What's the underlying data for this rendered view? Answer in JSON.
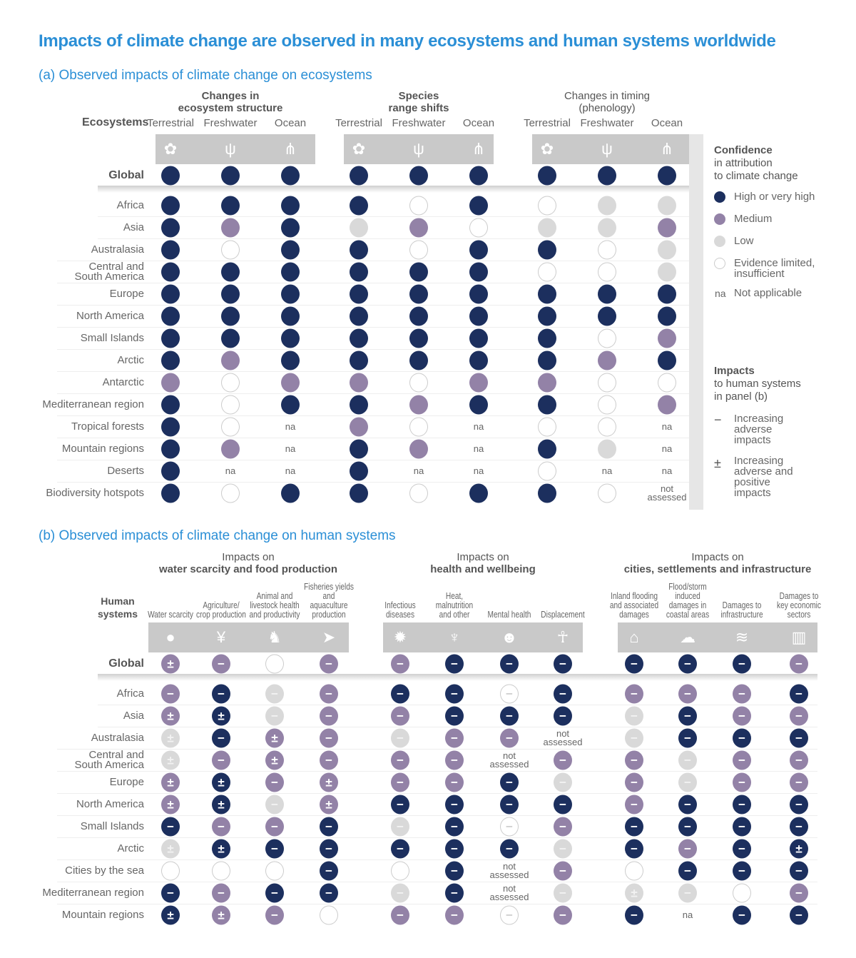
{
  "title": "Impacts of climate change are observed in many ecosystems and human systems worldwide",
  "colors": {
    "high": "#1c2f5e",
    "medium": "#9382a7",
    "low": "#d9d9d9",
    "limited": "#ffffff",
    "title": "#2b8fd6"
  },
  "panel_a": {
    "title": "(a) Observed impacts of climate change on ecosystems",
    "row_header": "Ecosystems",
    "groups": [
      {
        "line1": "Changes in",
        "line2": "ecosystem structure"
      },
      {
        "line1": "Species",
        "line2": "range shifts"
      },
      {
        "line1": "Changes in timing",
        "line2": "(phenology)"
      }
    ],
    "columns": [
      "Terrestrial",
      "Freshwater",
      "Ocean",
      "Terrestrial",
      "Freshwater",
      "Ocean",
      "Terrestrial",
      "Freshwater",
      "Ocean"
    ],
    "column_icons": [
      "terrestrial-plant-icon",
      "freshwater-reeds-icon",
      "ocean-fish-icon",
      "terrestrial-plant-icon",
      "freshwater-reeds-icon",
      "ocean-fish-icon",
      "terrestrial-plant-icon",
      "freshwater-reeds-icon",
      "ocean-fish-icon"
    ],
    "rows": [
      {
        "label": "Global",
        "values": [
          "H",
          "H",
          "H",
          "H",
          "H",
          "H",
          "H",
          "H",
          "H"
        ]
      },
      {
        "label": "Africa",
        "values": [
          "H",
          "H",
          "H",
          "H",
          "E",
          "H",
          "E",
          "L",
          "L"
        ]
      },
      {
        "label": "Asia",
        "values": [
          "H",
          "M",
          "H",
          "L",
          "M",
          "E",
          "L",
          "L",
          "M"
        ]
      },
      {
        "label": "Australasia",
        "values": [
          "H",
          "E",
          "H",
          "H",
          "E",
          "H",
          "H",
          "E",
          "L"
        ]
      },
      {
        "label": "Central and South America",
        "values": [
          "H",
          "H",
          "H",
          "H",
          "H",
          "H",
          "E",
          "E",
          "L"
        ]
      },
      {
        "label": "Europe",
        "values": [
          "H",
          "H",
          "H",
          "H",
          "H",
          "H",
          "H",
          "H",
          "H"
        ]
      },
      {
        "label": "North America",
        "values": [
          "H",
          "H",
          "H",
          "H",
          "H",
          "H",
          "H",
          "H",
          "H"
        ]
      },
      {
        "label": "Small Islands",
        "values": [
          "H",
          "H",
          "H",
          "H",
          "H",
          "H",
          "H",
          "E",
          "M"
        ]
      },
      {
        "label": "Arctic",
        "values": [
          "H",
          "M",
          "H",
          "H",
          "H",
          "H",
          "H",
          "M",
          "H"
        ]
      },
      {
        "label": "Antarctic",
        "values": [
          "M",
          "E",
          "M",
          "M",
          "E",
          "M",
          "M",
          "E",
          "E"
        ]
      },
      {
        "label": "Mediterranean region",
        "values": [
          "H",
          "E",
          "H",
          "H",
          "M",
          "H",
          "H",
          "E",
          "M"
        ]
      },
      {
        "label": "Tropical forests",
        "values": [
          "H",
          "E",
          "na",
          "M",
          "E",
          "na",
          "E",
          "E",
          "na"
        ]
      },
      {
        "label": "Mountain regions",
        "values": [
          "H",
          "M",
          "na",
          "H",
          "M",
          "na",
          "H",
          "L",
          "na"
        ]
      },
      {
        "label": "Deserts",
        "values": [
          "H",
          "na",
          "na",
          "H",
          "na",
          "na",
          "E",
          "na",
          "na"
        ]
      },
      {
        "label": "Biodiversity hotspots",
        "values": [
          "H",
          "E",
          "H",
          "H",
          "E",
          "H",
          "H",
          "E",
          "ns"
        ]
      }
    ]
  },
  "panel_b": {
    "title": "(b) Observed impacts of climate change on human systems",
    "row_header": "Human systems",
    "groups": [
      {
        "line1": "Impacts on",
        "line2": "water scarcity and food production"
      },
      {
        "line1": "Impacts on",
        "line2": "health and wellbeing"
      },
      {
        "line1": "Impacts on",
        "line2": "cities, settlements and infrastructure"
      }
    ],
    "columns": [
      "Water scarcity",
      "Agriculture/ crop production",
      "Animal and livestock health and productivity",
      "Fisheries yields and aquaculture production",
      "Infectious diseases",
      "Heat, malnutrition and other",
      "Mental health",
      "Displacement",
      "Inland flooding and associated damages",
      "Flood/storm induced damages in coastal areas",
      "Damages to infrastructure",
      "Damages to key economic sectors"
    ],
    "column_icons": [
      "water-drop-icon",
      "wheat-icon",
      "chicken-icon",
      "fish-icon",
      "virus-icon",
      "heat-icon",
      "mental-health-head-icon",
      "displaced-people-icon",
      "inland-flood-house-icon",
      "storm-cloud-icon",
      "coastal-damage-icon",
      "economic-chart-icon"
    ],
    "rows": [
      {
        "label": "Global",
        "values": [
          "M+",
          "M-",
          "E",
          "M-",
          "M-",
          "H-",
          "H-",
          "H-",
          "H-",
          "H-",
          "H-",
          "M-"
        ]
      },
      {
        "label": "Africa",
        "values": [
          "M-",
          "H-",
          "L-",
          "M-",
          "H-",
          "H-",
          "E-",
          "H-",
          "M-",
          "M-",
          "M-",
          "H-"
        ]
      },
      {
        "label": "Asia",
        "values": [
          "M+",
          "H+",
          "L-",
          "M-",
          "M-",
          "H-",
          "H-",
          "H-",
          "L-",
          "H-",
          "M-",
          "M-"
        ]
      },
      {
        "label": "Australasia",
        "values": [
          "L+",
          "H-",
          "M+",
          "M-",
          "L-",
          "M-",
          "M-",
          "ns",
          "L-",
          "H-",
          "H-",
          "H-"
        ]
      },
      {
        "label": "Central and South America",
        "values": [
          "L+",
          "M-",
          "M+",
          "M-",
          "M-",
          "M-",
          "ns",
          "M-",
          "M-",
          "L-",
          "M-",
          "M-"
        ]
      },
      {
        "label": "Europe",
        "values": [
          "M+",
          "H+",
          "M-",
          "M+",
          "M-",
          "M-",
          "H-",
          "L-",
          "M-",
          "L-",
          "M-",
          "M-"
        ]
      },
      {
        "label": "North America",
        "values": [
          "M+",
          "H+",
          "L-",
          "M+",
          "H-",
          "H-",
          "H-",
          "H-",
          "M-",
          "H-",
          "H-",
          "H-"
        ]
      },
      {
        "label": "Small Islands",
        "values": [
          "H-",
          "M-",
          "M-",
          "H-",
          "L-",
          "H-",
          "E-",
          "M-",
          "H-",
          "H-",
          "H-",
          "H-"
        ]
      },
      {
        "label": "Arctic",
        "values": [
          "L+",
          "H+",
          "H-",
          "H-",
          "H-",
          "H-",
          "H-",
          "L-",
          "H-",
          "M-",
          "H-",
          "H+"
        ]
      },
      {
        "label": "Cities by the sea",
        "values": [
          "E",
          "E",
          "E",
          "H-",
          "E",
          "H-",
          "ns",
          "M-",
          "E",
          "H-",
          "H-",
          "H-"
        ]
      },
      {
        "label": "Mediterranean region",
        "values": [
          "H-",
          "M-",
          "H-",
          "H-",
          "L-",
          "H-",
          "ns",
          "L-",
          "L+",
          "L-",
          "E",
          "M-"
        ]
      },
      {
        "label": "Mountain regions",
        "values": [
          "H+",
          "M+",
          "M-",
          "E",
          "M-",
          "M-",
          "E-",
          "M-",
          "H-",
          "na",
          "H-",
          "H-"
        ]
      }
    ]
  },
  "cell_text": {
    "na": "na",
    "ns_line1": "not",
    "ns_line2": "assessed"
  },
  "legend": {
    "confidence_title": "Confidence",
    "confidence_sub1": "in attribution",
    "confidence_sub2": "to climate change",
    "items": [
      {
        "code": "H",
        "label": "High or very high"
      },
      {
        "code": "M",
        "label": "Medium"
      },
      {
        "code": "L",
        "label": "Low"
      },
      {
        "code": "E",
        "label": "Evidence limited, insufficient"
      },
      {
        "code": "na",
        "label": "Not applicable"
      }
    ],
    "na_symbol": "na",
    "impacts_title": "Impacts",
    "impacts_sub1": "to human systems",
    "impacts_sub2": "in panel (b)",
    "impact_items": [
      {
        "symbol": "−",
        "label": "Increasing adverse impacts"
      },
      {
        "symbol": "±",
        "label": "Increasing adverse and positive impacts"
      }
    ]
  }
}
